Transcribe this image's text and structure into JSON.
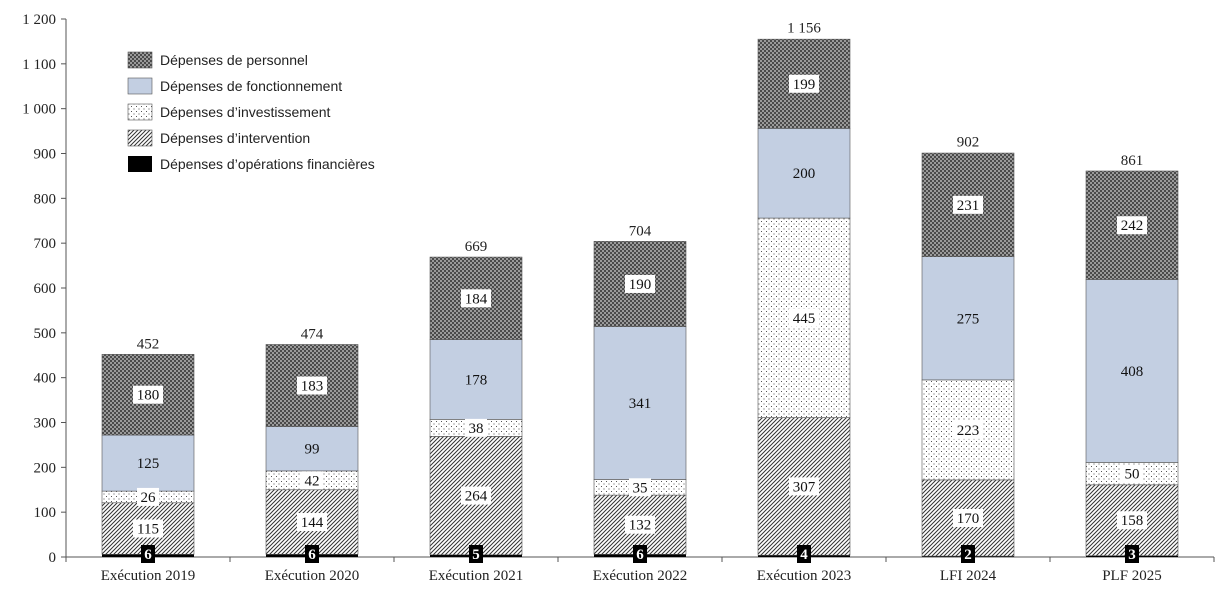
{
  "chart_data": {
    "type": "bar",
    "stacked": true,
    "title": "",
    "xlabel": "",
    "ylabel": "",
    "ylim": [
      0,
      1200
    ],
    "yticks": [
      0,
      100,
      200,
      300,
      400,
      500,
      600,
      700,
      800,
      900,
      1000,
      1100,
      1200
    ],
    "ytick_labels": [
      "0",
      "100",
      "200",
      "300",
      "400",
      "500",
      "600",
      "700",
      "800",
      "900",
      "1 000",
      "1 100",
      "1 200"
    ],
    "grid": false,
    "legend_position": "top-left",
    "categories": [
      "Exécution 2019",
      "Exécution 2020",
      "Exécution 2021",
      "Exécution 2022",
      "Exécution 2023",
      "LFI 2024",
      "PLF 2025"
    ],
    "totals": [
      452,
      474,
      669,
      704,
      1156,
      902,
      861
    ],
    "total_labels": [
      "452",
      "474",
      "669",
      "704",
      "1 156",
      "902",
      "861"
    ],
    "series": [
      {
        "name": "Dépenses d’opérations financières",
        "pattern": "solid-black",
        "values": [
          6,
          6,
          5,
          6,
          4,
          2,
          3
        ]
      },
      {
        "name": "Dépenses d’intervention",
        "pattern": "diagonal-hatch",
        "values": [
          115,
          144,
          264,
          132,
          307,
          170,
          158
        ]
      },
      {
        "name": "Dépenses d’investissement",
        "pattern": "dots",
        "values": [
          26,
          42,
          38,
          35,
          445,
          223,
          50
        ]
      },
      {
        "name": "Dépenses de fonctionnement",
        "pattern": "light-blue",
        "color": "#c3cfe2",
        "values": [
          125,
          99,
          178,
          341,
          200,
          275,
          408
        ]
      },
      {
        "name": "Dépenses de personnel",
        "pattern": "dark-checker",
        "values": [
          180,
          183,
          184,
          190,
          199,
          231,
          242
        ]
      }
    ],
    "legend_order": [
      "Dépenses de personnel",
      "Dépenses de fonctionnement",
      "Dépenses d’investissement",
      "Dépenses d’intervention",
      "Dépenses d’opérations financières"
    ]
  }
}
